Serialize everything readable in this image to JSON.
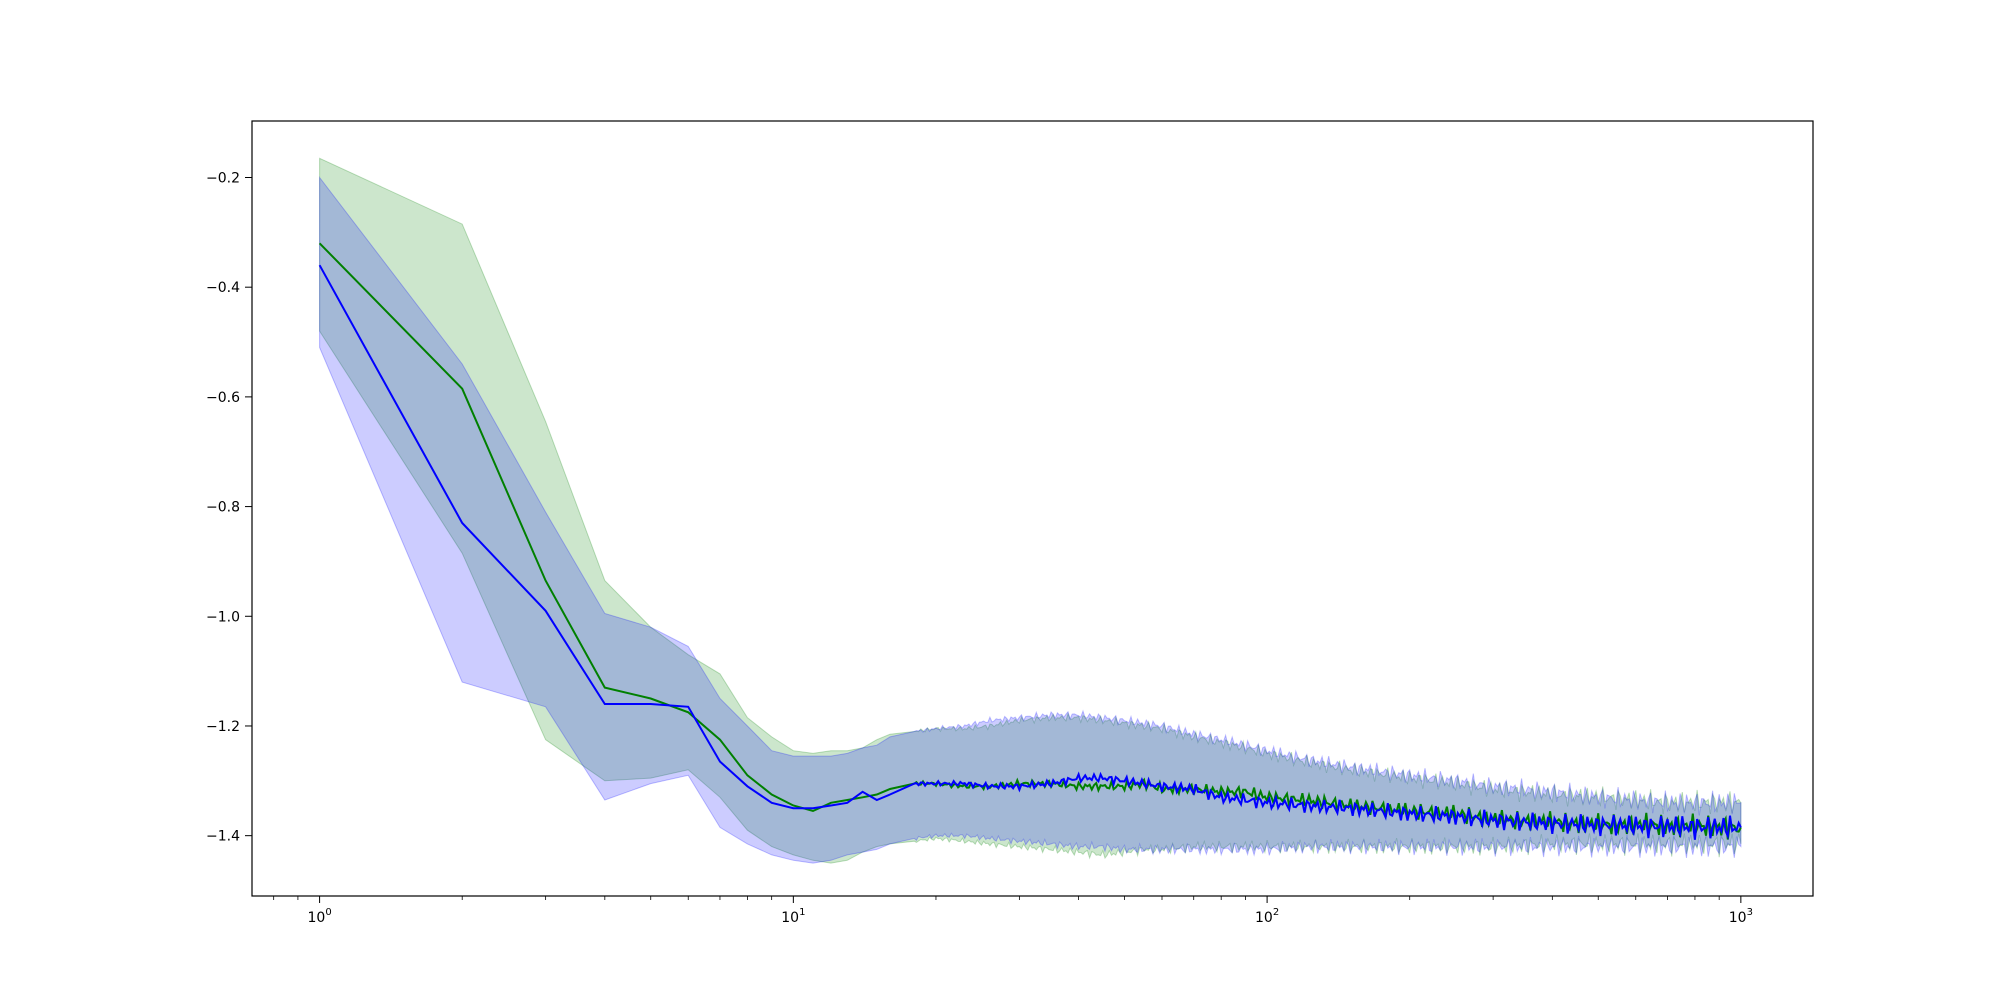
{
  "chart_data": {
    "type": "line",
    "title": "",
    "xlabel": "",
    "ylabel": "",
    "xscale": "log",
    "xlim": [
      0.72,
      1420
    ],
    "ylim": [
      -1.51,
      -0.097
    ],
    "x_ticks": [
      {
        "value": 1,
        "base": "10",
        "exp": "0"
      },
      {
        "value": 10,
        "base": "10",
        "exp": "1"
      },
      {
        "value": 100,
        "base": "10",
        "exp": "2"
      },
      {
        "value": 1000,
        "base": "10",
        "exp": "3"
      }
    ],
    "y_ticks": [
      {
        "value": -0.2,
        "label": "−0.2"
      },
      {
        "value": -0.4,
        "label": "−0.4"
      },
      {
        "value": -0.6,
        "label": "−0.6"
      },
      {
        "value": -0.8,
        "label": "−0.8"
      },
      {
        "value": -1.0,
        "label": "−1.0"
      },
      {
        "value": -1.2,
        "label": "−1.2"
      },
      {
        "value": -1.4,
        "label": "−1.4"
      }
    ],
    "grid": false,
    "series": [
      {
        "color": "#008000",
        "band_color": "#008000",
        "band_opacity": 0.2,
        "x": [
          1,
          2,
          3,
          4,
          5,
          6,
          7,
          8,
          9,
          10,
          11,
          12,
          13,
          14,
          15,
          16,
          18,
          20,
          23,
          26,
          30,
          35,
          40,
          45,
          50,
          55,
          60,
          70,
          80,
          90,
          100,
          120,
          150,
          200,
          250,
          300,
          400,
          500,
          600,
          700,
          800,
          900,
          1000
        ],
        "mean": [
          -0.32,
          -0.585,
          -0.935,
          -1.13,
          -1.15,
          -1.175,
          -1.225,
          -1.29,
          -1.325,
          -1.345,
          -1.355,
          -1.34,
          -1.335,
          -1.33,
          -1.325,
          -1.315,
          -1.305,
          -1.305,
          -1.31,
          -1.31,
          -1.305,
          -1.305,
          -1.31,
          -1.31,
          -1.31,
          -1.305,
          -1.315,
          -1.315,
          -1.32,
          -1.32,
          -1.33,
          -1.335,
          -1.345,
          -1.355,
          -1.36,
          -1.37,
          -1.375,
          -1.38,
          -1.38,
          -1.382,
          -1.383,
          -1.384,
          -1.385
        ],
        "lower": [
          -0.48,
          -0.885,
          -1.225,
          -1.3,
          -1.295,
          -1.28,
          -1.33,
          -1.39,
          -1.42,
          -1.435,
          -1.445,
          -1.45,
          -1.445,
          -1.43,
          -1.42,
          -1.415,
          -1.41,
          -1.405,
          -1.41,
          -1.415,
          -1.42,
          -1.425,
          -1.43,
          -1.435,
          -1.43,
          -1.425,
          -1.425,
          -1.42,
          -1.42,
          -1.42,
          -1.42,
          -1.42,
          -1.42,
          -1.42,
          -1.42,
          -1.42,
          -1.415,
          -1.415,
          -1.415,
          -1.415,
          -1.415,
          -1.415,
          -1.415
        ],
        "upper": [
          -0.165,
          -0.285,
          -0.645,
          -0.935,
          -1.02,
          -1.07,
          -1.105,
          -1.185,
          -1.22,
          -1.245,
          -1.25,
          -1.245,
          -1.245,
          -1.24,
          -1.225,
          -1.215,
          -1.21,
          -1.205,
          -1.205,
          -1.2,
          -1.19,
          -1.185,
          -1.185,
          -1.19,
          -1.195,
          -1.2,
          -1.205,
          -1.22,
          -1.23,
          -1.24,
          -1.25,
          -1.265,
          -1.28,
          -1.295,
          -1.305,
          -1.315,
          -1.325,
          -1.33,
          -1.335,
          -1.34,
          -1.34,
          -1.34,
          -1.34
        ]
      },
      {
        "color": "#0000ff",
        "band_color": "#0000ff",
        "band_opacity": 0.2,
        "x": [
          1,
          2,
          3,
          4,
          5,
          6,
          7,
          8,
          9,
          10,
          11,
          12,
          13,
          14,
          15,
          16,
          18,
          20,
          23,
          26,
          30,
          35,
          40,
          45,
          50,
          55,
          60,
          70,
          80,
          90,
          100,
          120,
          150,
          200,
          250,
          300,
          400,
          500,
          600,
          700,
          800,
          900,
          1000
        ],
        "mean": [
          -0.36,
          -0.83,
          -0.99,
          -1.16,
          -1.16,
          -1.165,
          -1.265,
          -1.31,
          -1.34,
          -1.35,
          -1.35,
          -1.345,
          -1.34,
          -1.32,
          -1.335,
          -1.325,
          -1.305,
          -1.305,
          -1.305,
          -1.31,
          -1.31,
          -1.305,
          -1.295,
          -1.295,
          -1.3,
          -1.305,
          -1.31,
          -1.315,
          -1.33,
          -1.335,
          -1.34,
          -1.345,
          -1.35,
          -1.36,
          -1.365,
          -1.372,
          -1.378,
          -1.38,
          -1.382,
          -1.383,
          -1.384,
          -1.385,
          -1.385
        ],
        "lower": [
          -0.51,
          -1.12,
          -1.165,
          -1.335,
          -1.305,
          -1.29,
          -1.385,
          -1.415,
          -1.435,
          -1.445,
          -1.45,
          -1.445,
          -1.435,
          -1.43,
          -1.425,
          -1.415,
          -1.405,
          -1.4,
          -1.4,
          -1.405,
          -1.41,
          -1.415,
          -1.42,
          -1.42,
          -1.425,
          -1.425,
          -1.425,
          -1.425,
          -1.425,
          -1.425,
          -1.425,
          -1.42,
          -1.42,
          -1.42,
          -1.42,
          -1.42,
          -1.42,
          -1.42,
          -1.42,
          -1.42,
          -1.42,
          -1.42,
          -1.42
        ],
        "upper": [
          -0.2,
          -0.54,
          -0.81,
          -0.995,
          -1.02,
          -1.055,
          -1.15,
          -1.2,
          -1.245,
          -1.255,
          -1.255,
          -1.255,
          -1.25,
          -1.24,
          -1.235,
          -1.22,
          -1.21,
          -1.205,
          -1.2,
          -1.19,
          -1.185,
          -1.18,
          -1.18,
          -1.185,
          -1.19,
          -1.195,
          -1.2,
          -1.215,
          -1.225,
          -1.235,
          -1.245,
          -1.26,
          -1.275,
          -1.29,
          -1.3,
          -1.31,
          -1.32,
          -1.33,
          -1.335,
          -1.34,
          -1.34,
          -1.34,
          -1.34
        ]
      }
    ]
  }
}
